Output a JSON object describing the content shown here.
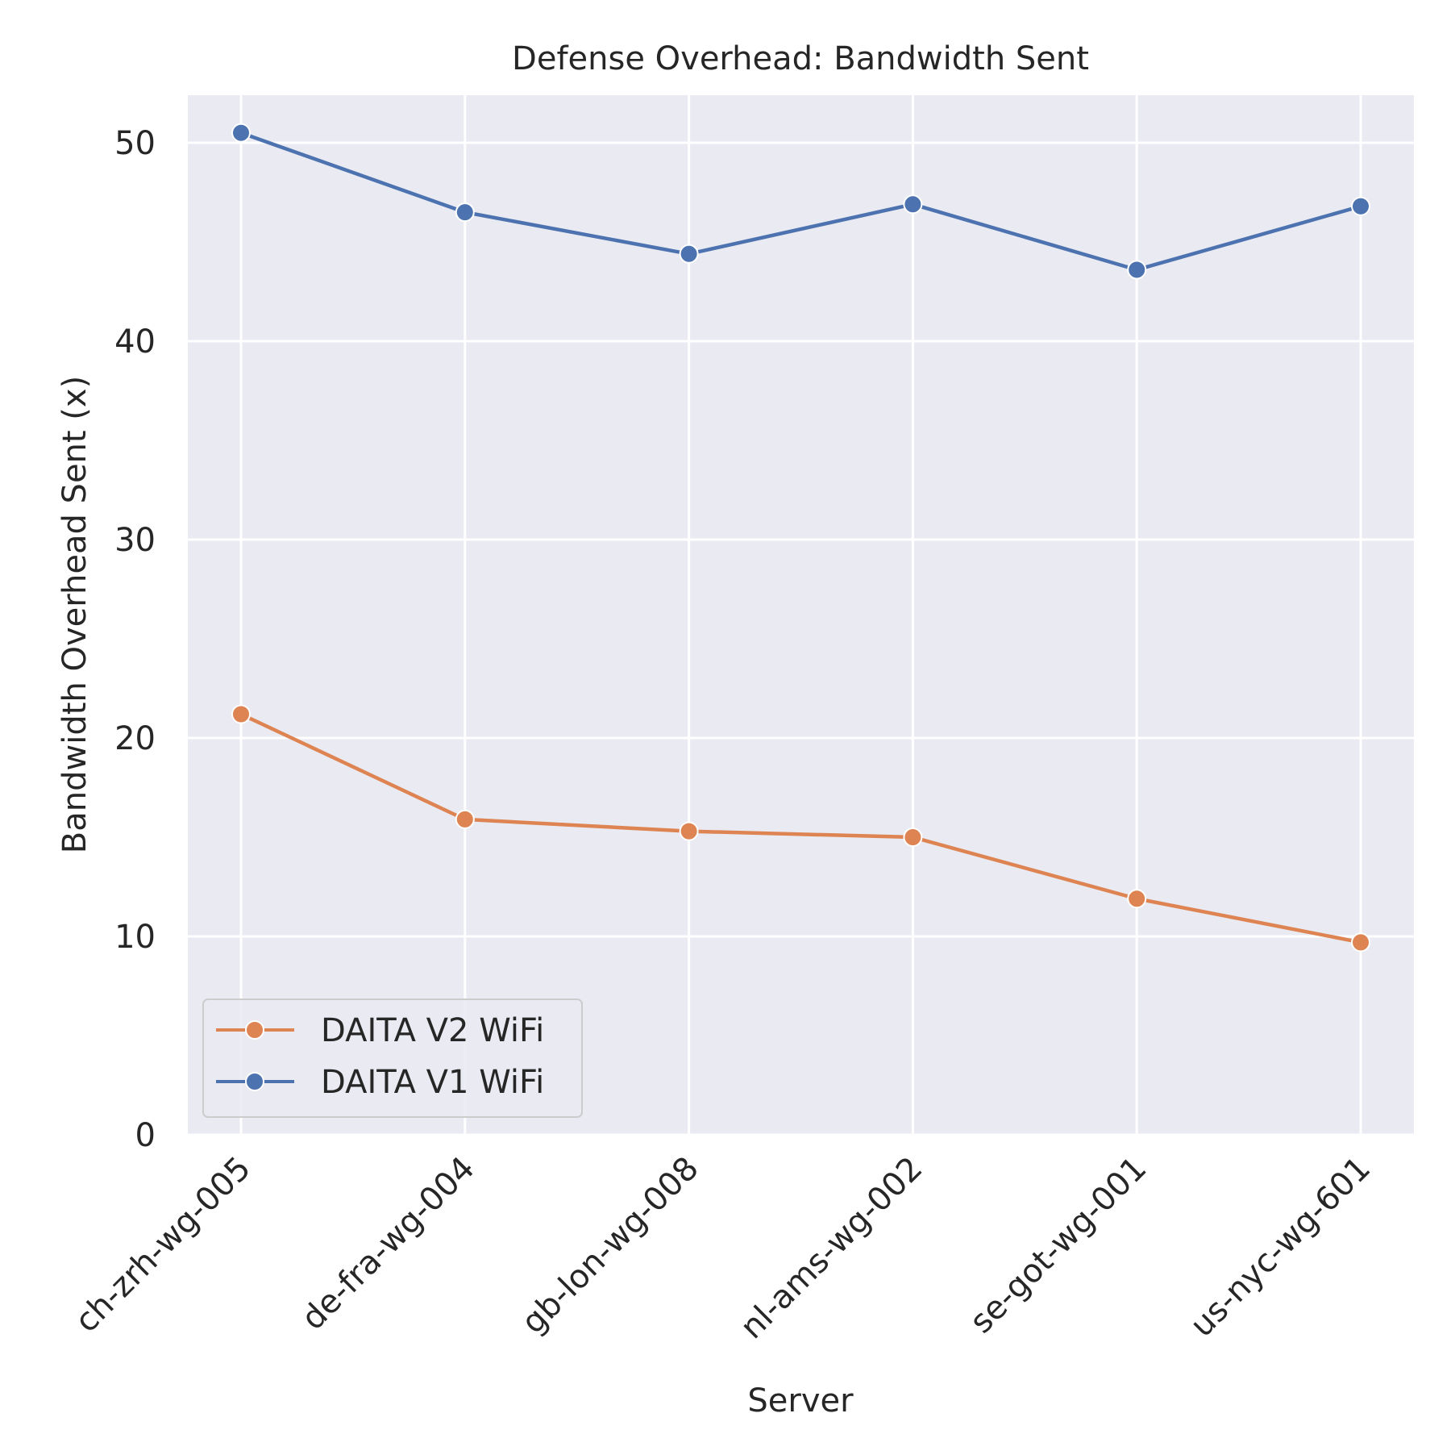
{
  "chart_data": {
    "type": "line",
    "title": "Defense Overhead: Bandwidth Sent",
    "xlabel": "Server",
    "ylabel": "Bandwidth Overhead Sent (x)",
    "categories": [
      "ch-zrh-wg-005",
      "de-fra-wg-004",
      "gb-lon-wg-008",
      "nl-ams-wg-002",
      "se-got-wg-001",
      "us-nyc-wg-601"
    ],
    "ylim": [
      0,
      52.4
    ],
    "yticks": [
      0,
      10,
      20,
      30,
      40,
      50
    ],
    "grid": true,
    "legend_position": "lower-left",
    "series": [
      {
        "name": "DAITA V2 WiFi",
        "color": "#dd8452",
        "marker": "circle",
        "values": [
          21.2,
          15.9,
          15.3,
          15.0,
          11.9,
          9.7
        ]
      },
      {
        "name": "DAITA V1 WiFi",
        "color": "#4c72b0",
        "marker": "circle",
        "values": [
          50.5,
          46.5,
          44.4,
          46.9,
          43.6,
          46.8
        ]
      }
    ],
    "background_color": "#eaeaf2",
    "grid_color": "#ffffff"
  }
}
